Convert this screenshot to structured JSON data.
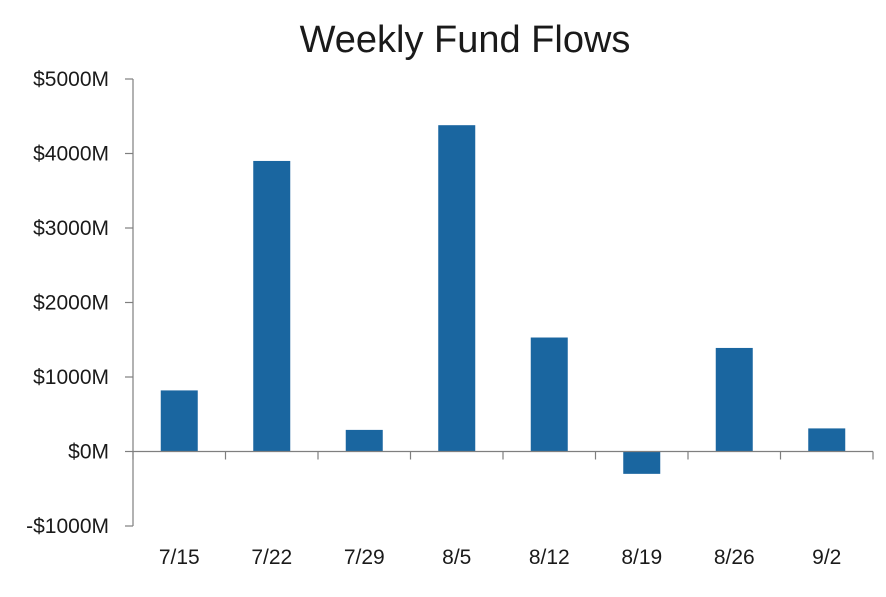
{
  "chart_data": {
    "type": "bar",
    "title": "Weekly Fund Flows",
    "xlabel": "",
    "ylabel": "",
    "categories": [
      "7/15",
      "7/22",
      "7/29",
      "8/5",
      "8/12",
      "8/19",
      "8/26",
      "9/2"
    ],
    "values": [
      820,
      3900,
      290,
      4380,
      1530,
      -300,
      1390,
      310
    ],
    "units": "$M",
    "ylim": [
      -1000,
      5000
    ],
    "yticks": [
      5000,
      4000,
      3000,
      2000,
      1000,
      0,
      -1000
    ],
    "ytick_labels": [
      "$5000M",
      "$4000M",
      "$3000M",
      "$2000M",
      "$1000M",
      "$0M",
      "-$1000M"
    ],
    "grid": false,
    "legend": "none",
    "colors": {
      "bar": "#1a66a0",
      "axis": "#7f7f7f",
      "text": "#1a1a1a"
    }
  }
}
